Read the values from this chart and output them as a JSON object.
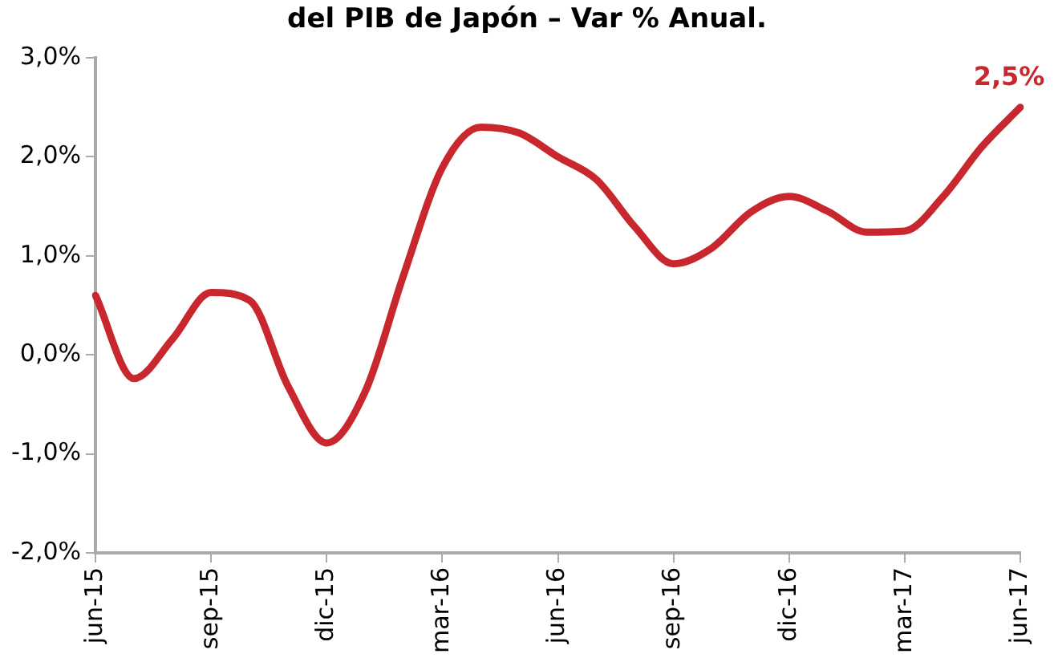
{
  "chart_data": {
    "type": "line",
    "title": "del PIB de Japón – Var % Anual.",
    "categories": [
      "jun-15",
      null,
      null,
      "sep-15",
      null,
      null,
      "dic-15",
      null,
      null,
      "mar-16",
      null,
      null,
      "jun-16",
      null,
      null,
      "sep-16",
      null,
      null,
      "dic-16",
      null,
      null,
      "mar-17",
      null,
      null,
      "jun-17"
    ],
    "series": [
      {
        "color": "#c8282d",
        "values": [
          0.6,
          -0.24,
          0.16,
          0.63,
          0.55,
          -0.32,
          -0.89,
          -0.37,
          0.81,
          1.89,
          2.3,
          2.24,
          2.0,
          1.77,
          1.29,
          0.92,
          1.08,
          1.44,
          1.6,
          1.45,
          1.24,
          1.25,
          1.6,
          2.1,
          2.5
        ],
        "value_labels": [
          null,
          null,
          null,
          null,
          null,
          null,
          null,
          null,
          null,
          null,
          null,
          null,
          null,
          null,
          null,
          null,
          null,
          null,
          null,
          null,
          null,
          null,
          null,
          null,
          "2,5%"
        ]
      }
    ],
    "ylim": [
      -2,
      3
    ],
    "yticks": [
      {
        "value": -2,
        "label": "-2,0%"
      },
      {
        "value": -1,
        "label": "-1,0%"
      },
      {
        "value": 0,
        "label": "0,0%"
      },
      {
        "value": 1,
        "label": "1,0%"
      },
      {
        "value": 2,
        "label": "2,0%"
      },
      {
        "value": 3,
        "label": "3,0%"
      }
    ],
    "grid": false,
    "legend": false,
    "marker": "none",
    "line_style": "solid"
  }
}
